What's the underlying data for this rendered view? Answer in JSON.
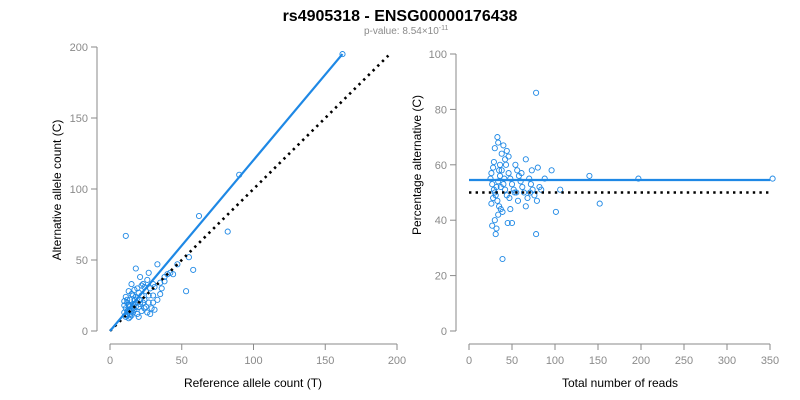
{
  "title": "rs4905318 - ENSG00000176438",
  "subtitle_prefix": "p-value: 8.54×10",
  "subtitle_exponent": "-11",
  "colors": {
    "points": "#1e88e5",
    "fit_line": "#1e88e5",
    "reference_line": "#000000",
    "axis": "#8a8a8a"
  },
  "chart_data": [
    {
      "type": "scatter",
      "xlabel": "Reference allele count (T)",
      "ylabel": "Alternative allele count (C)",
      "xlim": [
        0,
        200
      ],
      "ylim": [
        0,
        200
      ],
      "xticks": [
        "0",
        "50",
        "100",
        "150",
        "200"
      ],
      "yticks": [
        "0",
        "50",
        "100",
        "150",
        "200"
      ],
      "grid": false,
      "fit_line": {
        "x": [
          0,
          162
        ],
        "y": [
          0,
          195
        ],
        "style": "solid"
      },
      "reference_line": {
        "x": [
          0,
          194
        ],
        "y": [
          0,
          194
        ],
        "style": "dotted"
      },
      "points": [
        [
          11,
          67
        ],
        [
          90,
          110
        ],
        [
          62,
          81
        ],
        [
          82,
          70
        ],
        [
          55,
          52
        ],
        [
          58,
          43
        ],
        [
          53,
          28
        ],
        [
          162,
          195
        ],
        [
          47,
          47
        ],
        [
          42,
          41
        ],
        [
          38,
          38
        ],
        [
          33,
          47
        ],
        [
          40,
          40
        ],
        [
          35,
          34
        ],
        [
          31,
          31
        ],
        [
          30,
          33
        ],
        [
          28,
          30
        ],
        [
          27,
          25
        ],
        [
          25,
          28
        ],
        [
          24,
          31
        ],
        [
          23,
          20
        ],
        [
          22,
          25
        ],
        [
          21,
          19
        ],
        [
          20,
          27
        ],
        [
          19,
          23
        ],
        [
          18,
          17
        ],
        [
          18,
          44
        ],
        [
          17,
          22
        ],
        [
          16,
          16
        ],
        [
          16,
          19
        ],
        [
          15,
          14
        ],
        [
          15,
          26
        ],
        [
          14,
          22
        ],
        [
          14,
          12
        ],
        [
          13,
          18
        ],
        [
          13,
          15
        ],
        [
          12,
          11
        ],
        [
          12,
          20
        ],
        [
          11,
          16
        ],
        [
          11,
          24
        ],
        [
          10,
          13
        ],
        [
          10,
          18
        ],
        [
          20,
          10
        ],
        [
          22,
          14
        ],
        [
          25,
          17
        ],
        [
          28,
          12
        ],
        [
          30,
          20
        ],
        [
          26,
          36
        ],
        [
          35,
          26
        ],
        [
          29,
          16
        ],
        [
          17,
          29
        ],
        [
          19,
          12
        ],
        [
          23,
          33
        ],
        [
          13,
          28
        ],
        [
          21,
          38
        ],
        [
          15,
          33
        ],
        [
          18,
          24
        ],
        [
          24,
          16
        ],
        [
          27,
          41
        ],
        [
          33,
          22
        ],
        [
          36,
          30
        ],
        [
          38,
          35
        ],
        [
          44,
          40
        ],
        [
          12,
          14
        ],
        [
          14,
          18
        ],
        [
          16,
          13
        ],
        [
          11,
          10
        ],
        [
          13,
          9
        ],
        [
          10,
          21
        ],
        [
          26,
          13
        ],
        [
          31,
          15
        ],
        [
          19,
          30
        ],
        [
          22,
          32
        ],
        [
          20,
          17
        ],
        [
          17,
          15
        ],
        [
          15,
          11
        ],
        [
          12,
          22
        ],
        [
          14,
          10
        ],
        [
          24,
          22
        ],
        [
          17,
          19
        ],
        [
          21,
          22
        ],
        [
          16,
          25
        ],
        [
          30,
          25
        ],
        [
          27,
          20
        ]
      ]
    },
    {
      "type": "scatter",
      "xlabel": "Total number of reads",
      "ylabel": "Percentage alternative (C)",
      "xlim": [
        0,
        350
      ],
      "ylim": [
        0,
        100
      ],
      "xticks": [
        "0",
        "50",
        "100",
        "150",
        "200",
        "250",
        "300",
        "350"
      ],
      "yticks": [
        "0",
        "20",
        "40",
        "60",
        "80",
        "100"
      ],
      "grid": false,
      "fit_line": {
        "x": [
          0,
          350
        ],
        "y": [
          54.5,
          54.5
        ],
        "style": "solid"
      },
      "reference_line": {
        "x": [
          0,
          350
        ],
        "y": [
          50,
          50
        ],
        "style": "dotted"
      },
      "points": [
        [
          78,
          86
        ],
        [
          33,
          70
        ],
        [
          34,
          68
        ],
        [
          30,
          66
        ],
        [
          38,
          64
        ],
        [
          40,
          67
        ],
        [
          44,
          65
        ],
        [
          42,
          62
        ],
        [
          36,
          60
        ],
        [
          28,
          59
        ],
        [
          26,
          57
        ],
        [
          25,
          55
        ],
        [
          27,
          53
        ],
        [
          29,
          51
        ],
        [
          31,
          49
        ],
        [
          33,
          47
        ],
        [
          35,
          45
        ],
        [
          37,
          44
        ],
        [
          39,
          43
        ],
        [
          26,
          46
        ],
        [
          28,
          48
        ],
        [
          30,
          50
        ],
        [
          32,
          52
        ],
        [
          34,
          54
        ],
        [
          36,
          56
        ],
        [
          38,
          58
        ],
        [
          40,
          53
        ],
        [
          42,
          51
        ],
        [
          44,
          49
        ],
        [
          46,
          57
        ],
        [
          48,
          55
        ],
        [
          50,
          53
        ],
        [
          52,
          51
        ],
        [
          54,
          60
        ],
        [
          56,
          58
        ],
        [
          58,
          56
        ],
        [
          60,
          54
        ],
        [
          62,
          52
        ],
        [
          64,
          50
        ],
        [
          66,
          62
        ],
        [
          68,
          48
        ],
        [
          70,
          55
        ],
        [
          72,
          53
        ],
        [
          74,
          51
        ],
        [
          76,
          49
        ],
        [
          79,
          47
        ],
        [
          80,
          59
        ],
        [
          84,
          51
        ],
        [
          88,
          55
        ],
        [
          96,
          58
        ],
        [
          101,
          43
        ],
        [
          106,
          51
        ],
        [
          140,
          56
        ],
        [
          152,
          46
        ],
        [
          197,
          55
        ],
        [
          353,
          55
        ],
        [
          30,
          40
        ],
        [
          32,
          37
        ],
        [
          31,
          35
        ],
        [
          39,
          26
        ],
        [
          45,
          39
        ],
        [
          50,
          39
        ],
        [
          78,
          35
        ],
        [
          27,
          38
        ],
        [
          34,
          42
        ],
        [
          47,
          48
        ],
        [
          53,
          50
        ],
        [
          57,
          47
        ],
        [
          43,
          60
        ],
        [
          41,
          55
        ],
        [
          37,
          52
        ],
        [
          35,
          58
        ],
        [
          29,
          61
        ],
        [
          46,
          63
        ],
        [
          48,
          44
        ],
        [
          55,
          50
        ],
        [
          61,
          57
        ],
        [
          66,
          45
        ],
        [
          71,
          50
        ],
        [
          73,
          58
        ],
        [
          82,
          52
        ]
      ]
    }
  ]
}
